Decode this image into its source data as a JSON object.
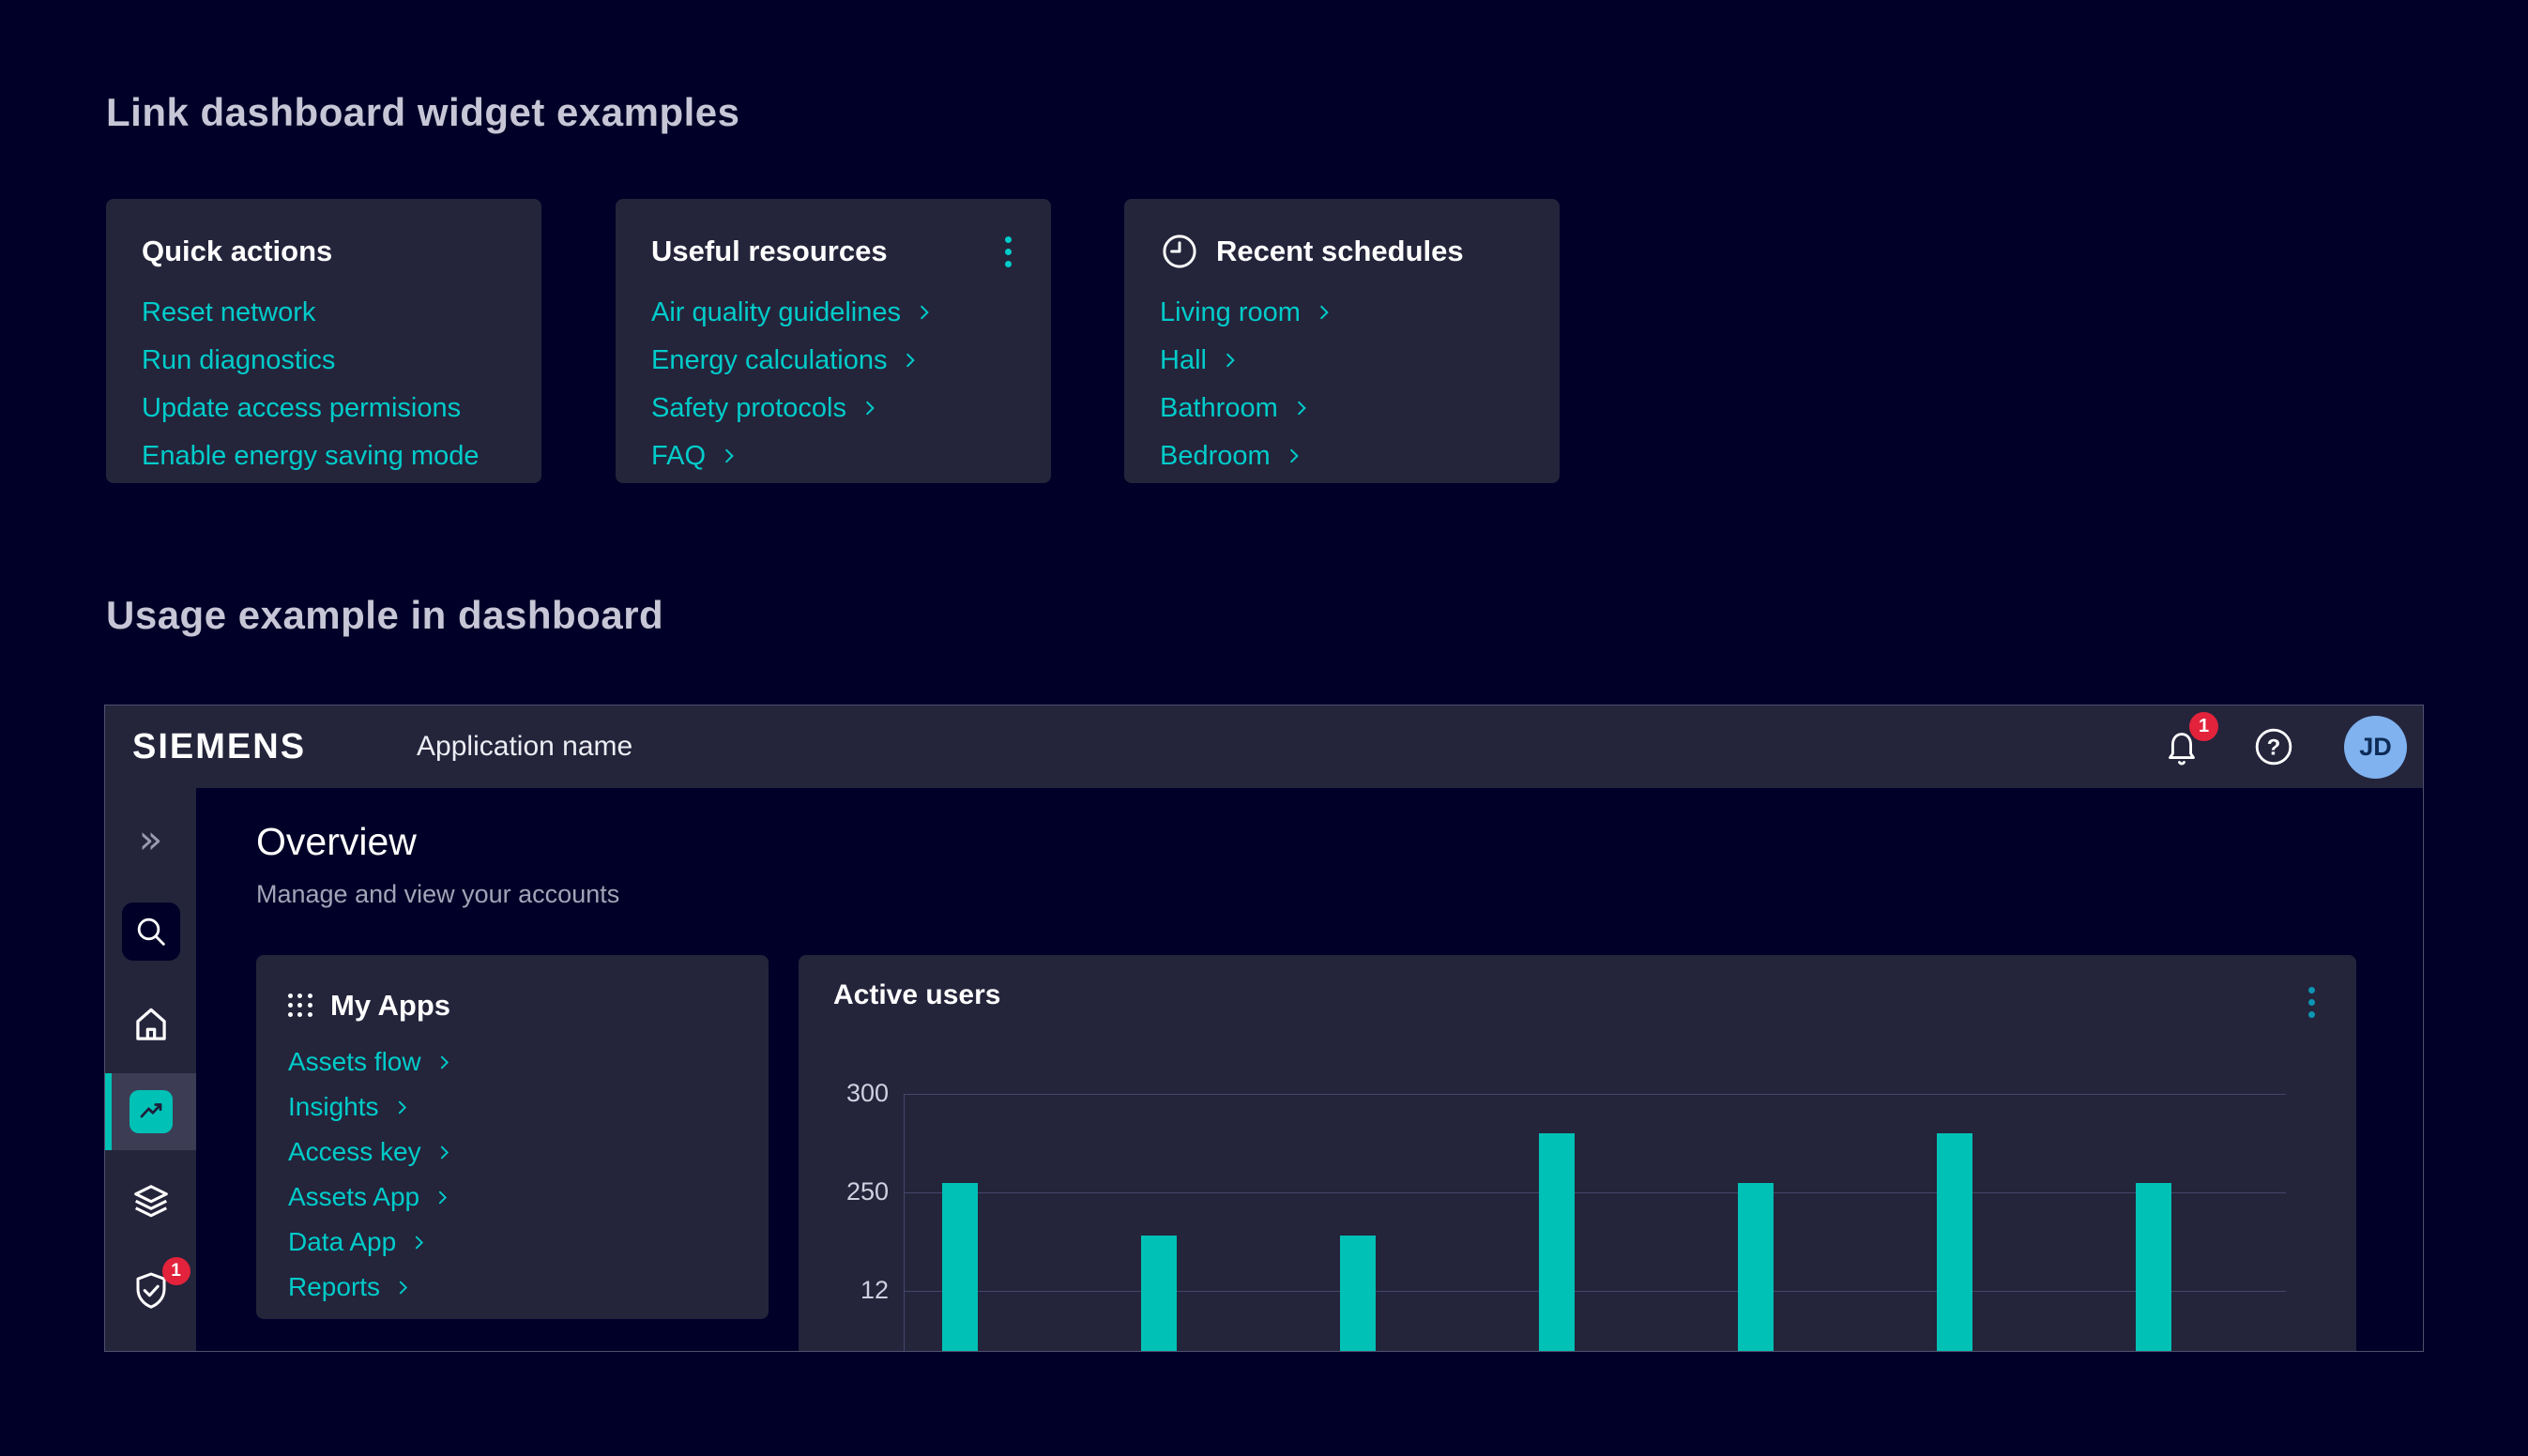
{
  "page": {
    "heading_widgets": "Link dashboard widget examples",
    "heading_usage": "Usage example in dashboard"
  },
  "cards": {
    "quick_actions": {
      "title": "Quick actions",
      "links": [
        "Reset network",
        "Run diagnostics",
        "Update access permisions",
        "Enable energy saving mode"
      ]
    },
    "useful_resources": {
      "title": "Useful resources",
      "menu_icon": "kebab-menu-icon",
      "links": [
        "Air quality guidelines",
        "Energy calculations",
        "Safety protocols",
        "FAQ"
      ]
    },
    "recent_schedules": {
      "title": "Recent schedules",
      "title_icon": "clock-icon",
      "links": [
        "Living room",
        "Hall",
        "Bathroom",
        "Bedroom"
      ]
    }
  },
  "dashboard": {
    "brand": "SIEMENS",
    "app_name": "Application name",
    "header": {
      "icons": [
        "bell-icon",
        "help-icon",
        "avatar"
      ],
      "notification_count": "1",
      "avatar_initials": "JD"
    },
    "sidebar": {
      "icons": [
        "double-chevron-right-icon",
        "search-icon",
        "home-icon",
        "trend-chart-icon",
        "layers-icon",
        "shield-check-icon"
      ],
      "active_item": "trend-chart",
      "security_badge": "1"
    },
    "content": {
      "title": "Overview",
      "subtitle": "Manage and view your accounts"
    },
    "my_apps": {
      "title": "My Apps",
      "title_icon": "app-grid-icon",
      "links": [
        "Assets flow",
        "Insights",
        "Access key",
        "Assets App",
        "Data App",
        "Reports"
      ]
    }
  },
  "chart_data": {
    "type": "bar",
    "title": "Active users",
    "y_tick_labels": [
      "300",
      "250",
      "12"
    ],
    "values": [
      255,
      228,
      228,
      280,
      255,
      280,
      255
    ],
    "bar_color": "#00C1B6",
    "gridlines": true,
    "legend": false,
    "x_tick_labels": [],
    "bars_cut_off_at_bottom": true
  },
  "colors": {
    "background": "#000028",
    "card": "#24243B",
    "accent_teal": "#00C1B6",
    "link_teal": "#00CCCA",
    "badge_red": "#E2233B",
    "avatar_blue": "#7FB2EE",
    "gridline": "#46466A",
    "heading_gray": "#C6C6D6"
  }
}
